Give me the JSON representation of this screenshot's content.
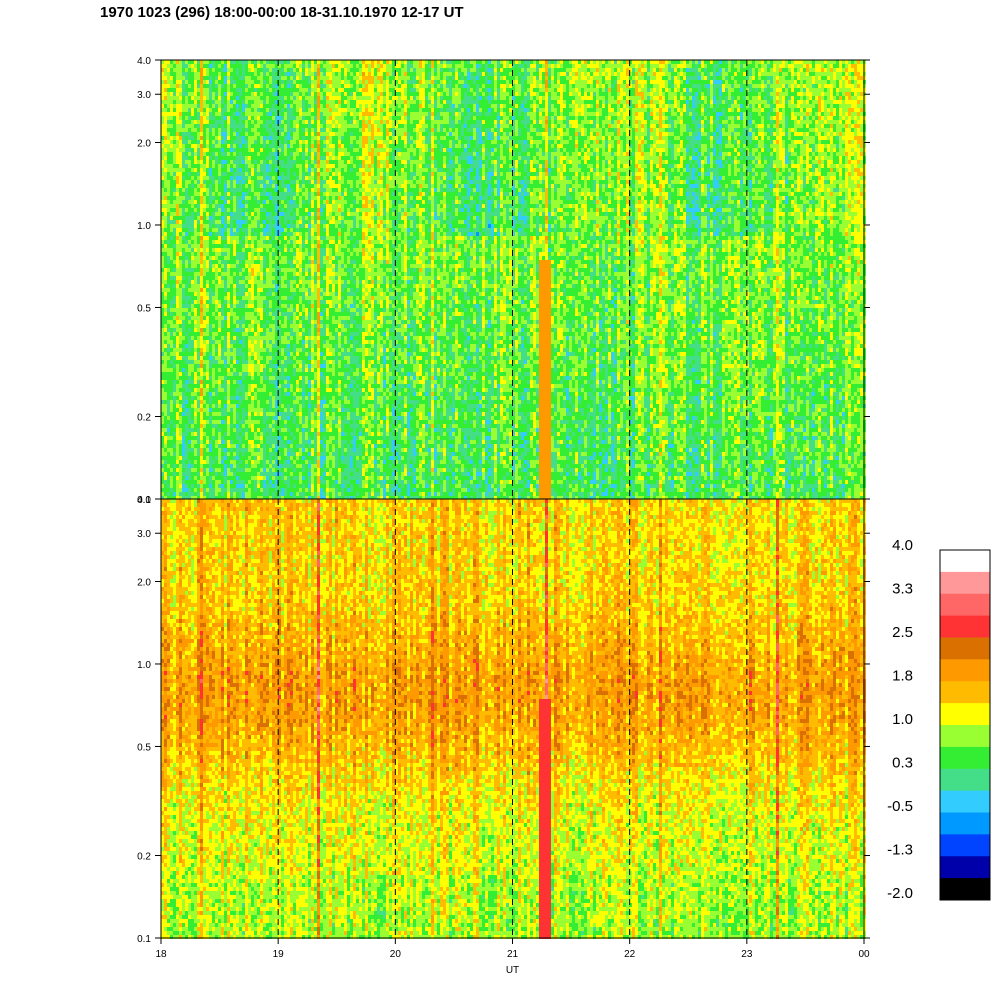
{
  "title": "1970 1023 (296) 18:00-00:00 18-31.10.1970  12-17 UT",
  "chart_data": {
    "type": "heatmap",
    "xlabel": "UT",
    "x_ticks": [
      "18",
      "19",
      "20",
      "21",
      "22",
      "23",
      "00"
    ],
    "x_range": [
      18,
      24
    ],
    "dashed_vertical_lines": [
      19,
      20,
      21,
      22,
      23
    ],
    "y_scale": "log",
    "y_range": [
      0.1,
      4.0
    ],
    "y_ticks": [
      "0.1",
      "0.2",
      "0.5",
      "1.0",
      "2.0",
      "3.0",
      "4.0"
    ],
    "panels": [
      {
        "name": "upper",
        "dominant_levels": [
          "0.3",
          "-0.5",
          "1.0"
        ],
        "description_value_mean": 0.35,
        "bright_spike_times": [
          18.33,
          19.33,
          20.3,
          21.27,
          22.25,
          23.25
        ]
      },
      {
        "name": "lower",
        "dominant_levels": [
          "1.0",
          "1.8",
          "2.5"
        ],
        "description_value_mean": 1.4,
        "bright_spike_times": [
          18.33,
          19.33,
          20.3,
          21.27,
          22.25,
          23.25
        ]
      }
    ],
    "colorbar": {
      "labels": [
        "4.0",
        "3.3",
        "2.5",
        "1.8",
        "1.0",
        "0.3",
        "-0.5",
        "-1.3",
        "-2.0"
      ],
      "colors": [
        "#ffffff",
        "#ff9999",
        "#ff6666",
        "#ff3333",
        "#d97000",
        "#ff9900",
        "#ffbb00",
        "#ffff00",
        "#99ff33",
        "#33ee33",
        "#44dd88",
        "#33ccff",
        "#0099ff",
        "#0044ff",
        "#0000aa",
        "#000000"
      ]
    }
  }
}
